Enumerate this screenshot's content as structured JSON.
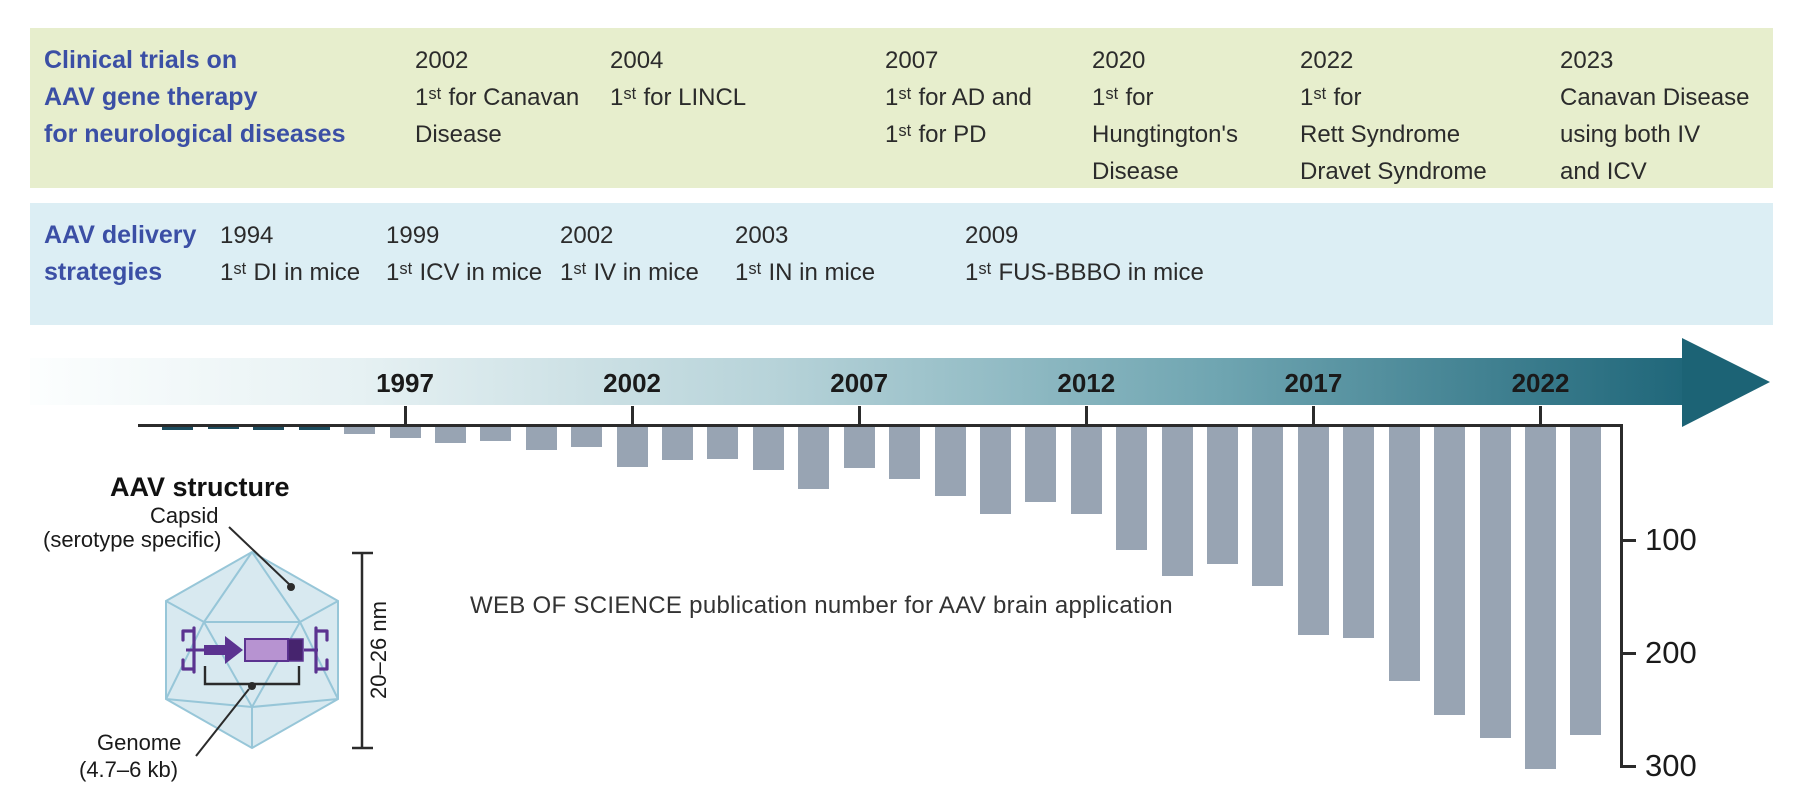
{
  "clinical_band": {
    "bg": "#e7eecd",
    "title_lines": [
      "Clinical trials on",
      "AAV gene therapy",
      "for neurological diseases"
    ],
    "columns": [
      {
        "year": "2002",
        "lines": [
          "1ˢᵗ for Canavan",
          "Disease"
        ]
      },
      {
        "year": "2004",
        "lines": [
          "1ˢᵗ for LINCL"
        ]
      },
      {
        "year": "2007",
        "lines": [
          "1ˢᵗ for AD and",
          "1ˢᵗ for PD"
        ]
      },
      {
        "year": "2020",
        "lines": [
          "1ˢᵗ for",
          "Hungtington's",
          "Disease"
        ]
      },
      {
        "year": "2022",
        "lines": [
          "1ˢᵗ for",
          "Rett Syndrome",
          "Dravet Syndrome"
        ]
      },
      {
        "year": "2023",
        "lines": [
          "Canavan Disease",
          "using both IV",
          "and ICV"
        ]
      }
    ]
  },
  "delivery_band": {
    "bg": "#dceef4",
    "title_lines": [
      "AAV delivery",
      "strategies"
    ],
    "columns": [
      {
        "year": "1994",
        "lines": [
          "1ˢᵗ DI in mice"
        ]
      },
      {
        "year": "1999",
        "lines": [
          "1ˢᵗ ICV in mice"
        ]
      },
      {
        "year": "2002",
        "lines": [
          "1ˢᵗ IV in mice"
        ]
      },
      {
        "year": "2003",
        "lines": [
          "1ˢᵗ IN in mice"
        ]
      },
      {
        "year": "2009",
        "lines": [
          "1ˢᵗ FUS-BBBO in mice"
        ]
      }
    ]
  },
  "timeline": {
    "tick_years": [
      1997,
      2002,
      2007,
      2012,
      2017,
      2022
    ],
    "arrow_color_start": "#fcfefe",
    "arrow_color_end": "#1c6375"
  },
  "chart_data": {
    "type": "bar",
    "title": "WEB OF SCIENCE publication number for AAV brain application",
    "x": [
      1992,
      1993,
      1994,
      1995,
      1996,
      1997,
      1998,
      1999,
      2000,
      2001,
      2002,
      2003,
      2004,
      2005,
      2006,
      2007,
      2008,
      2009,
      2010,
      2011,
      2012,
      2013,
      2014,
      2015,
      2016,
      2017,
      2018,
      2019,
      2020,
      2021,
      2022,
      2023
    ],
    "values": [
      3,
      1,
      3,
      3,
      6,
      10,
      14,
      12,
      20,
      18,
      35,
      29,
      28,
      38,
      55,
      36,
      46,
      61,
      77,
      66,
      77,
      109,
      132,
      121,
      141,
      184,
      187,
      225,
      255,
      275,
      303,
      273
    ],
    "yticks": [
      100,
      200,
      300
    ],
    "ylim": [
      0,
      310
    ],
    "direction": "downward-from-timeline",
    "grid": false,
    "bar_color": "#98a4b3",
    "early_bar_color": "#1d4c5e",
    "early_bar_years": [
      1992,
      1993,
      1994,
      1995
    ]
  },
  "aav_structure": {
    "title": "AAV structure",
    "capsid_label": "Capsid",
    "capsid_sublabel": "(serotype specific)",
    "genome_label": "Genome",
    "genome_sublabel": "(4.7–6 kb)",
    "size_label": "20–26 nm",
    "capsid_fill": "#d8e9f0",
    "capsid_stroke": "#97c6d8",
    "genome_purple": "#5b3390",
    "gene_fill": "#b793d1",
    "gene_dark_segment": "#46246e"
  }
}
